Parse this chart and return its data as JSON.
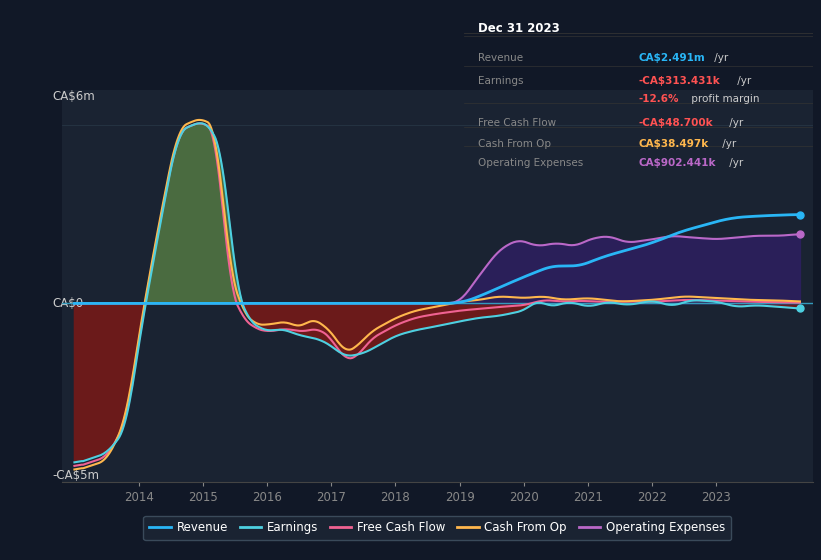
{
  "bg_color": "#111827",
  "plot_bg_color": "#1a2332",
  "chart_bg_darker": "#141d2b",
  "ylim": [
    -5000000,
    6000000
  ],
  "xlim_start": 2012.8,
  "xlim_end": 2024.5,
  "colors": {
    "revenue": "#29b6f6",
    "earnings": "#4dd0e1",
    "free_cash_flow": "#f06292",
    "cash_from_op": "#ffb74d",
    "operating_expenses": "#ba68c8"
  },
  "fill_colors": {
    "earnings_pos": "#4a6b40",
    "earnings_neg": "#6b1a1a",
    "operating_expenses": "#2d1f60"
  },
  "zero_line_color": "#3399bb",
  "grid_line_color": "#263545",
  "ylabel_top": "CA$6m",
  "ylabel_zero": "CA$0",
  "ylabel_bot": "-CA$5m",
  "xtick_years": [
    2014,
    2015,
    2016,
    2017,
    2018,
    2019,
    2020,
    2021,
    2022,
    2023
  ],
  "infobox": {
    "title": "Dec 31 2023",
    "rows": [
      {
        "label": "Revenue",
        "val1": "CA$2.491m",
        "val1_color": "#29b6f6",
        "suffix": " /yr",
        "val2": "",
        "val2_color": ""
      },
      {
        "label": "Earnings",
        "val1": "-CA$313.431k",
        "val1_color": "#ff5252",
        "suffix": " /yr",
        "val2": "",
        "val2_color": ""
      },
      {
        "label": "",
        "val1": "-12.6%",
        "val1_color": "#ff5252",
        "suffix": "",
        "val2": " profit margin",
        "val2_color": "#cccccc"
      },
      {
        "label": "Free Cash Flow",
        "val1": "-CA$48.700k",
        "val1_color": "#ff5252",
        "suffix": " /yr",
        "val2": "",
        "val2_color": ""
      },
      {
        "label": "Cash From Op",
        "val1": "CA$38.497k",
        "val1_color": "#ffb74d",
        "suffix": " /yr",
        "val2": "",
        "val2_color": ""
      },
      {
        "label": "Operating Expenses",
        "val1": "CA$902.441k",
        "val1_color": "#ba68c8",
        "suffix": " /yr",
        "val2": "",
        "val2_color": ""
      }
    ]
  },
  "legend": [
    {
      "label": "Revenue",
      "color": "#29b6f6"
    },
    {
      "label": "Earnings",
      "color": "#4dd0e1"
    },
    {
      "label": "Free Cash Flow",
      "color": "#f06292"
    },
    {
      "label": "Cash From Op",
      "color": "#ffb74d"
    },
    {
      "label": "Operating Expenses",
      "color": "#ba68c8"
    }
  ]
}
